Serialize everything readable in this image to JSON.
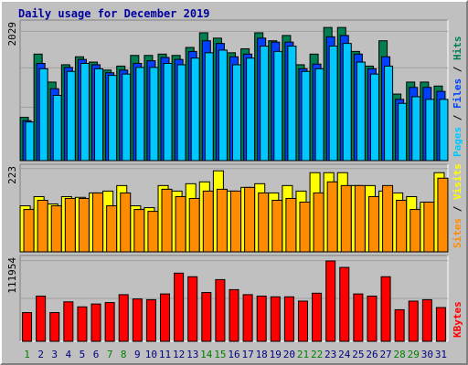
{
  "title": "Daily usage for December 2019",
  "colors": {
    "hits": "#007f50",
    "files": "#0040ff",
    "pages": "#00c8ff",
    "visits": "#ffff00",
    "sites": "#ff8c00",
    "kbytes": "#ff0000",
    "weekday_label": "#000080",
    "weekend_label": "#008000"
  },
  "chart_data": [
    {
      "type": "bar",
      "panel": "hits-files-pages",
      "categories": [
        "1",
        "2",
        "3",
        "4",
        "5",
        "6",
        "7",
        "8",
        "9",
        "10",
        "11",
        "12",
        "13",
        "14",
        "15",
        "16",
        "17",
        "18",
        "19",
        "20",
        "21",
        "22",
        "23",
        "24",
        "25",
        "26",
        "27",
        "28",
        "29",
        "30",
        "31"
      ],
      "weekend_days": [
        "1",
        "7",
        "8",
        "14",
        "15",
        "21",
        "22",
        "28",
        "29"
      ],
      "ylabel_max": "2029",
      "ylim": [
        0,
        2029
      ],
      "right_labels": [
        "Pages",
        "Files",
        "Hits"
      ],
      "series": [
        {
          "name": "Hits",
          "values": [
            650,
            1600,
            1180,
            1440,
            1560,
            1480,
            1360,
            1420,
            1580,
            1580,
            1600,
            1580,
            1700,
            1920,
            1840,
            1620,
            1680,
            1920,
            1800,
            1880,
            1440,
            1600,
            2000,
            2000,
            1640,
            1420,
            1800,
            1000,
            1180,
            1180,
            1120
          ]
        },
        {
          "name": "Files",
          "values": [
            600,
            1460,
            1080,
            1400,
            1520,
            1440,
            1320,
            1360,
            1460,
            1500,
            1550,
            1520,
            1640,
            1800,
            1760,
            1560,
            1600,
            1840,
            1780,
            1780,
            1380,
            1450,
            1860,
            1880,
            1600,
            1380,
            1560,
            920,
            1100,
            1100,
            1040
          ]
        },
        {
          "name": "Pages",
          "values": [
            580,
            1380,
            980,
            1340,
            1460,
            1380,
            1280,
            1300,
            1400,
            1400,
            1460,
            1440,
            1540,
            1620,
            1660,
            1440,
            1540,
            1720,
            1640,
            1720,
            1340,
            1380,
            1720,
            1760,
            1480,
            1300,
            1420,
            860,
            960,
            920,
            920
          ]
        }
      ]
    },
    {
      "type": "bar",
      "panel": "visits-sites",
      "categories": [
        "1",
        "2",
        "3",
        "4",
        "5",
        "6",
        "7",
        "8",
        "9",
        "10",
        "11",
        "12",
        "13",
        "14",
        "15",
        "16",
        "17",
        "18",
        "19",
        "20",
        "21",
        "22",
        "23",
        "24",
        "25",
        "26",
        "27",
        "28",
        "29",
        "30",
        "31"
      ],
      "ylabel_max": "223",
      "ylim": [
        0,
        223
      ],
      "right_labels": [
        "Sites",
        "Visits"
      ],
      "series": [
        {
          "name": "Visits",
          "values": [
            125,
            150,
            130,
            150,
            148,
            160,
            165,
            180,
            125,
            120,
            180,
            165,
            185,
            190,
            220,
            165,
            175,
            185,
            160,
            180,
            165,
            215,
            215,
            215,
            180,
            180,
            165,
            160,
            150,
            135,
            215
          ]
        },
        {
          "name": "Sites",
          "values": [
            115,
            140,
            125,
            145,
            145,
            160,
            125,
            160,
            115,
            110,
            170,
            150,
            145,
            165,
            170,
            165,
            175,
            160,
            140,
            145,
            135,
            160,
            190,
            180,
            180,
            150,
            180,
            140,
            115,
            135,
            200
          ]
        }
      ]
    },
    {
      "type": "bar",
      "panel": "kbytes",
      "categories": [
        "1",
        "2",
        "3",
        "4",
        "5",
        "6",
        "7",
        "8",
        "9",
        "10",
        "11",
        "12",
        "13",
        "14",
        "15",
        "16",
        "17",
        "18",
        "19",
        "20",
        "21",
        "22",
        "23",
        "24",
        "25",
        "26",
        "27",
        "28",
        "29",
        "30",
        "31"
      ],
      "ylabel_max": "111954",
      "ylim": [
        0,
        111954
      ],
      "right_labels": [
        "KBytes"
      ],
      "series": [
        {
          "name": "KBytes",
          "values": [
            40000,
            63000,
            40000,
            55000,
            48000,
            52000,
            54000,
            65000,
            59000,
            58000,
            66000,
            95000,
            90000,
            68000,
            86000,
            72000,
            65000,
            63000,
            62000,
            62000,
            56000,
            67000,
            111954,
            103000,
            66000,
            63000,
            90000,
            44000,
            56000,
            58000,
            47000
          ]
        }
      ]
    }
  ]
}
